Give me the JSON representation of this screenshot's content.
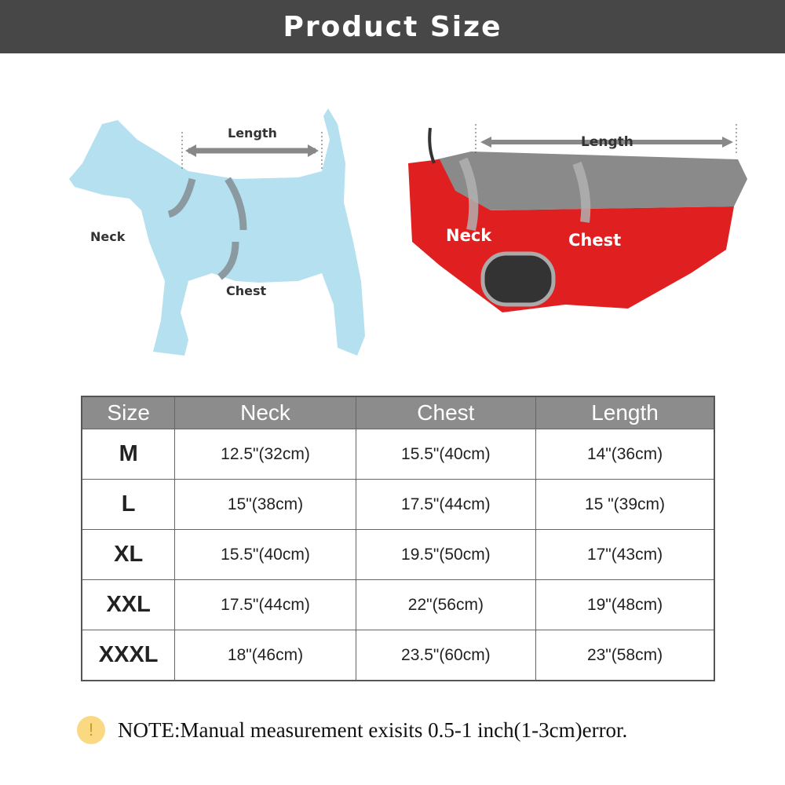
{
  "title": "Product Size",
  "diagram_labels": {
    "dog": {
      "length": "Length",
      "neck": "Neck",
      "chest": "Chest"
    },
    "coat": {
      "length": "Length",
      "neck": "Neck",
      "chest": "Chest"
    }
  },
  "table": {
    "headers": [
      "Size",
      "Neck",
      "Chest",
      "Length"
    ],
    "rows": [
      [
        "M",
        "12.5\"(32cm)",
        "15.5\"(40cm)",
        "14\"(36cm)"
      ],
      [
        "L",
        "15\"(38cm)",
        "17.5\"(44cm)",
        "15 \"(39cm)"
      ],
      [
        "XL",
        "15.5\"(40cm)",
        "19.5\"(50cm)",
        "17\"(43cm)"
      ],
      [
        "XXL",
        "17.5\"(44cm)",
        "22\"(56cm)",
        "19\"(48cm)"
      ],
      [
        "XXXL",
        "18\"(46cm)",
        "23.5\"(60cm)",
        "23\"(58cm)"
      ]
    ]
  },
  "note": {
    "icon": "exclamation-icon",
    "text": "NOTE:Manual measurement exisits 0.5-1 inch(1-3cm)error."
  },
  "colors": {
    "banner": "#474747",
    "table_header": "#8c8c8c",
    "dog": "#b5e0ef",
    "coat_red": "#e02020",
    "coat_gray": "#8a8a8a",
    "warn": "#fbd882"
  }
}
